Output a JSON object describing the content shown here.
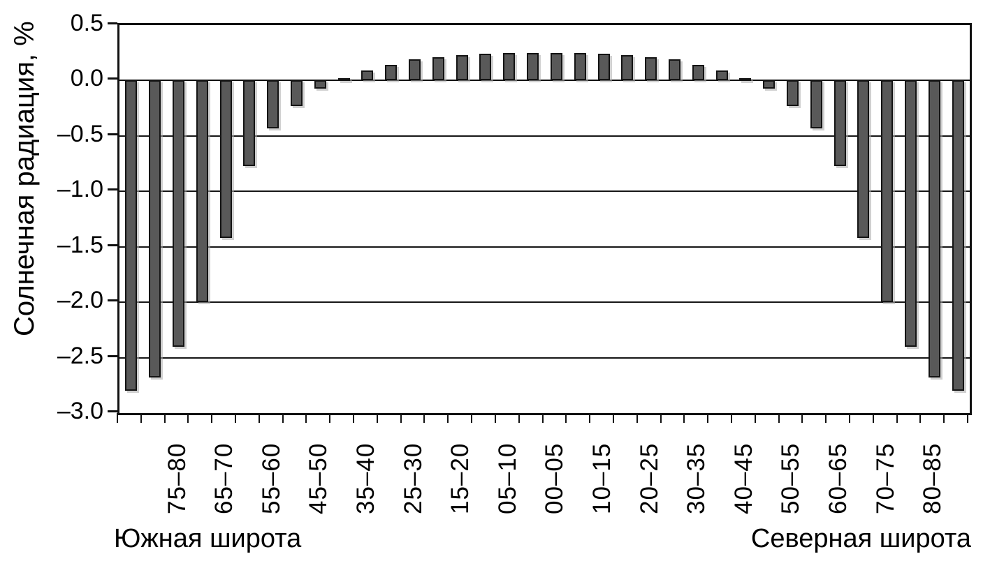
{
  "chart_data": {
    "type": "bar",
    "title": "",
    "ylabel": "Солнечная радиация, %",
    "xlabel_left": "Южная широта",
    "xlabel_right": "Северная широта",
    "ylim": [
      -3.0,
      0.5
    ],
    "grid": true,
    "grid_values": [
      -0.5,
      -1.0,
      -1.5,
      -2.0,
      -2.5
    ],
    "bar_color": "#595959",
    "bar_border_color": "#141414",
    "bar_count": 36,
    "values": [
      -2.8,
      -2.68,
      -2.4,
      -2.0,
      -1.42,
      -0.77,
      -0.43,
      -0.23,
      -0.07,
      0.02,
      0.09,
      0.14,
      0.19,
      0.21,
      0.23,
      0.24,
      0.25,
      0.25,
      0.25,
      0.25,
      0.24,
      0.23,
      0.21,
      0.19,
      0.14,
      0.09,
      0.02,
      -0.07,
      -0.23,
      -0.43,
      -0.77,
      -1.42,
      -2.0,
      -2.4,
      -2.68,
      -2.8
    ],
    "y_ticks": [
      {
        "value": 0.5,
        "label": "0.5"
      },
      {
        "value": 0.0,
        "label": "0.0"
      },
      {
        "value": -0.5,
        "label": "–0.5"
      },
      {
        "value": -1.0,
        "label": "–1.0"
      },
      {
        "value": -1.5,
        "label": "–1.5"
      },
      {
        "value": -2.0,
        "label": "–2.0"
      },
      {
        "value": -2.5,
        "label": "–2.5"
      },
      {
        "value": -3.0,
        "label": "–3.0"
      }
    ],
    "x_tick_labels": [
      {
        "bar": 2,
        "label": "75–80"
      },
      {
        "bar": 4,
        "label": "65–70"
      },
      {
        "bar": 6,
        "label": "55–60"
      },
      {
        "bar": 8,
        "label": "45–50"
      },
      {
        "bar": 10,
        "label": "35–40"
      },
      {
        "bar": 12,
        "label": "25–30"
      },
      {
        "bar": 14,
        "label": "15–20"
      },
      {
        "bar": 16,
        "label": "05–10"
      },
      {
        "bar": 18,
        "label": "00–05"
      },
      {
        "bar": 20,
        "label": "10–15"
      },
      {
        "bar": 22,
        "label": "20–25"
      },
      {
        "bar": 24,
        "label": "30–35"
      },
      {
        "bar": 26,
        "label": "40–45"
      },
      {
        "bar": 28,
        "label": "50–55"
      },
      {
        "bar": 30,
        "label": "60–65"
      },
      {
        "bar": 32,
        "label": "70–75"
      },
      {
        "bar": 34,
        "label": "80–85"
      }
    ]
  }
}
